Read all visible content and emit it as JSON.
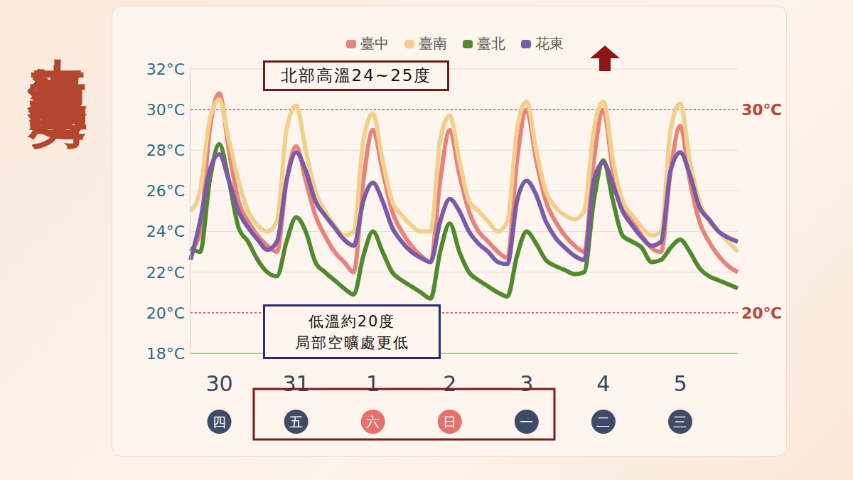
{
  "chart_data": {
    "type": "line",
    "title": "未來氣溫趨勢",
    "categories": [
      null,
      null,
      null,
      "30",
      null,
      null,
      null,
      null,
      null,
      null,
      null,
      "31",
      null,
      null,
      null,
      null,
      null,
      null,
      null,
      "1",
      null,
      null,
      null,
      null,
      null,
      null,
      null,
      "2",
      null,
      null,
      null,
      null,
      null,
      null,
      null,
      "3",
      null,
      null,
      null,
      null,
      null,
      null,
      null,
      "4",
      null,
      null,
      null,
      null,
      null,
      null,
      null,
      "5",
      null,
      null,
      null,
      null,
      null,
      null
    ],
    "weekdays": [
      null,
      null,
      null,
      "四",
      null,
      null,
      null,
      null,
      null,
      null,
      null,
      "五",
      null,
      null,
      null,
      null,
      null,
      null,
      null,
      "六",
      null,
      null,
      null,
      null,
      null,
      null,
      null,
      "日",
      null,
      null,
      null,
      null,
      null,
      null,
      null,
      "一",
      null,
      null,
      null,
      null,
      null,
      null,
      null,
      "二",
      null,
      null,
      null,
      null,
      null,
      null,
      null,
      "三",
      null,
      null,
      null,
      null,
      null,
      null
    ],
    "weekday_colors": [
      null,
      null,
      null,
      "#3f4a66",
      null,
      null,
      null,
      null,
      null,
      null,
      null,
      "#3f4a66",
      null,
      null,
      null,
      null,
      null,
      null,
      null,
      "#e8706a",
      null,
      null,
      null,
      null,
      null,
      null,
      null,
      "#e8706a",
      null,
      null,
      null,
      null,
      null,
      null,
      null,
      "#3f4a66",
      null,
      null,
      null,
      null,
      null,
      null,
      null,
      "#3f4a66",
      null,
      null,
      null,
      null,
      null,
      null,
      null,
      "#3f4a66",
      null,
      null,
      null,
      null,
      null,
      null
    ],
    "series": [
      {
        "name": "臺中",
        "color": "#e8827b",
        "values": [
          23.0,
          24.0,
          29.0,
          30.8,
          28.0,
          25.5,
          24.5,
          23.8,
          23.3,
          23.0,
          26.5,
          28.2,
          26.5,
          24.8,
          23.8,
          23.0,
          22.5,
          22.0,
          26.5,
          29.0,
          27.0,
          25.0,
          24.0,
          23.3,
          22.8,
          22.5,
          26.5,
          29.0,
          26.8,
          25.0,
          24.0,
          23.5,
          23.0,
          22.7,
          27.5,
          30.0,
          27.5,
          25.5,
          24.5,
          23.8,
          23.3,
          23.0,
          27.5,
          30.0,
          27.0,
          25.5,
          24.5,
          23.8,
          23.2,
          23.0,
          27.0,
          29.2,
          26.5,
          24.5,
          23.5,
          22.8,
          22.3,
          22.0
        ]
      },
      {
        "name": "臺南",
        "color": "#f0d08c",
        "values": [
          25.0,
          26.0,
          29.5,
          30.5,
          28.5,
          26.5,
          25.0,
          24.3,
          24.0,
          24.5,
          29.0,
          30.2,
          28.0,
          26.0,
          25.0,
          24.3,
          23.8,
          24.0,
          28.5,
          29.8,
          27.5,
          25.5,
          24.8,
          24.3,
          24.0,
          24.0,
          28.5,
          29.7,
          27.5,
          25.5,
          25.0,
          24.5,
          24.0,
          24.5,
          29.0,
          30.4,
          28.0,
          26.0,
          25.2,
          24.8,
          24.6,
          25.0,
          29.0,
          30.4,
          27.5,
          25.5,
          24.8,
          24.2,
          23.8,
          24.0,
          29.0,
          30.3,
          27.5,
          25.5,
          24.5,
          24.0,
          23.5,
          23.0
        ]
      },
      {
        "name": "臺北",
        "color": "#4f8a2e",
        "values": [
          23.2,
          23.0,
          26.5,
          28.3,
          26.5,
          24.2,
          23.5,
          22.6,
          22.0,
          21.8,
          23.5,
          24.7,
          24.0,
          22.5,
          22.0,
          21.6,
          21.2,
          20.9,
          22.8,
          24.0,
          23.0,
          22.0,
          21.6,
          21.3,
          21.0,
          20.7,
          23.0,
          24.4,
          23.0,
          22.0,
          21.6,
          21.3,
          21.0,
          20.8,
          22.8,
          24.0,
          23.4,
          22.6,
          22.3,
          22.1,
          21.9,
          22.0,
          25.5,
          27.5,
          25.5,
          23.8,
          23.5,
          23.2,
          22.5,
          22.6,
          23.2,
          23.6,
          23.0,
          22.2,
          21.8,
          21.6,
          21.4,
          21.2
        ]
      },
      {
        "name": "花東",
        "color": "#7b5aa6",
        "values": [
          22.6,
          24.5,
          27.0,
          27.8,
          26.5,
          25.0,
          24.2,
          23.6,
          23.1,
          23.5,
          26.5,
          27.9,
          27.0,
          25.5,
          24.8,
          24.2,
          23.6,
          23.3,
          25.5,
          26.4,
          25.5,
          24.2,
          23.5,
          23.0,
          22.7,
          22.5,
          24.5,
          25.6,
          25.0,
          24.0,
          23.4,
          23.0,
          22.5,
          22.4,
          25.5,
          26.5,
          25.8,
          24.5,
          23.7,
          23.2,
          22.8,
          22.6,
          26.5,
          27.4,
          26.3,
          25.0,
          24.3,
          23.7,
          23.3,
          23.5,
          27.0,
          27.9,
          26.8,
          25.2,
          24.6,
          24.0,
          23.7,
          23.5
        ]
      }
    ],
    "ylim": [
      18,
      32
    ],
    "yticks": [
      {
        "value": 18,
        "label": "18°C"
      },
      {
        "value": 20,
        "label": "20°C"
      },
      {
        "value": 22,
        "label": "22°C"
      },
      {
        "value": 24,
        "label": "24°C"
      },
      {
        "value": 26,
        "label": "26°C"
      },
      {
        "value": 28,
        "label": "28°C"
      },
      {
        "value": 30,
        "label": "30°C"
      },
      {
        "value": 32,
        "label": "32°C"
      }
    ],
    "reference_lines": [
      {
        "value": 30,
        "label": "30℃"
      },
      {
        "value": 20,
        "label": "20℃"
      }
    ],
    "annotations": [
      [
        "北部高溫24~25度"
      ],
      [
        "低溫約20度",
        "局部空曠處更低"
      ]
    ],
    "grid": true,
    "legend": "top"
  }
}
